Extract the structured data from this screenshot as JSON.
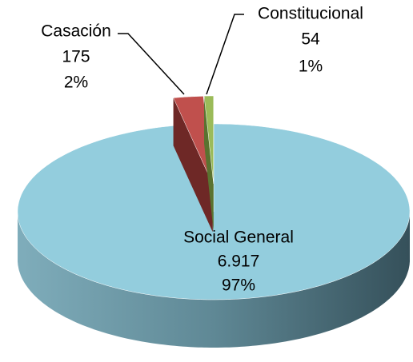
{
  "chart_data": {
    "type": "pie3d",
    "categories": [
      "Social General",
      "Casación",
      "Constitucional"
    ],
    "values": [
      6917,
      175,
      54
    ],
    "value_labels": [
      "6.917",
      "175",
      "54"
    ],
    "percent_labels": [
      "97%",
      "2%",
      "1%"
    ],
    "colors": [
      "#93cddd",
      "#c0504d",
      "#9bbb59"
    ],
    "side_colors": [
      "#4f7480",
      "#6e2826",
      "#5a7330"
    ]
  }
}
